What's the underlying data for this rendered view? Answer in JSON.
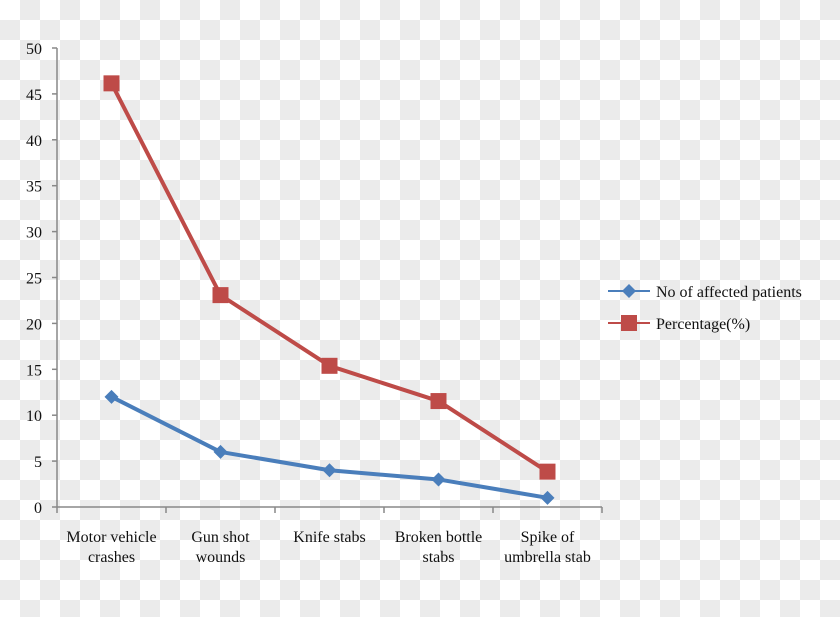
{
  "chart_data": {
    "type": "line",
    "categories": [
      [
        "Motor vehicle",
        "crashes"
      ],
      [
        "Gun shot",
        "wounds"
      ],
      [
        "Knife stabs"
      ],
      [
        "Broken bottle",
        "stabs"
      ],
      [
        "Spike of",
        "umbrella stab"
      ]
    ],
    "series": [
      {
        "name": "No of affected patients",
        "values": [
          12,
          6,
          4,
          3,
          1
        ],
        "color": "#4a7ebb",
        "marker": "diamond"
      },
      {
        "name": "Percentage(%)",
        "values": [
          46.15,
          23.08,
          15.38,
          11.54,
          3.85
        ],
        "color": "#be4b48",
        "marker": "square"
      }
    ],
    "ylim": [
      0,
      50
    ],
    "yticks": [
      0,
      5,
      10,
      15,
      20,
      25,
      30,
      35,
      40,
      45,
      50
    ],
    "grid": false,
    "legend": "right"
  }
}
